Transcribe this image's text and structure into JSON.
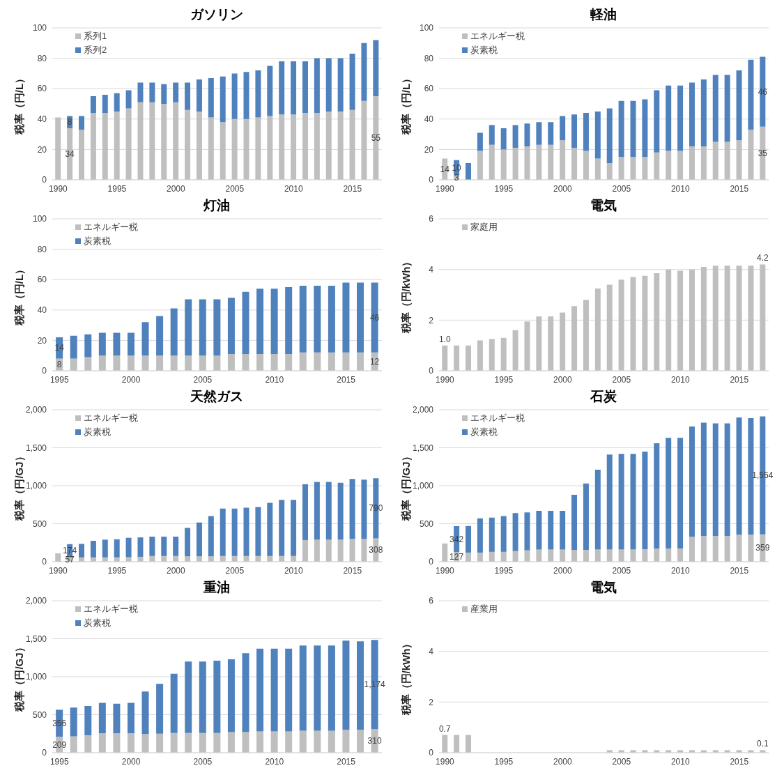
{
  "chart_data": [
    {
      "type": "bar",
      "title": "ガソリン",
      "ylabel": "税率（円/L）",
      "stacked": true,
      "legend": "top left",
      "grid": "y",
      "ylim": [
        0,
        100
      ],
      "yticks": [
        0,
        20,
        40,
        60,
        80,
        100
      ],
      "categories": [
        "1990",
        null,
        null,
        null,
        null,
        "1995",
        null,
        null,
        null,
        null,
        "2000",
        null,
        null,
        null,
        null,
        "2005",
        null,
        null,
        null,
        null,
        "2010",
        null,
        null,
        null,
        null,
        "2015",
        null,
        null
      ],
      "series": [
        {
          "name": "系列1",
          "color": "#bfbfbf",
          "values": [
            41,
            34,
            33,
            44,
            44,
            45,
            47,
            51,
            51,
            50,
            51,
            46,
            45,
            41,
            38,
            40,
            40,
            41,
            42,
            43,
            43,
            44,
            44,
            45,
            45,
            46,
            52,
            55
          ],
          "value_labels": [
            null,
            "34",
            null,
            null,
            null,
            null,
            null,
            null,
            null,
            null,
            null,
            null,
            null,
            null,
            null,
            null,
            null,
            null,
            null,
            null,
            null,
            null,
            null,
            null,
            null,
            null,
            null,
            "55"
          ]
        },
        {
          "name": "系列2",
          "color": "#4f81bd",
          "values": [
            null,
            8,
            9,
            11,
            12,
            12,
            12,
            13,
            13,
            13,
            13,
            18,
            21,
            26,
            30,
            30,
            31,
            31,
            33,
            35,
            35,
            34,
            36,
            35,
            35,
            37,
            38,
            37
          ],
          "value_labels": [
            null,
            "8",
            null,
            null,
            null,
            null,
            null,
            null,
            null,
            null,
            null,
            null,
            null,
            null,
            null,
            null,
            null,
            null,
            null,
            null,
            null,
            null,
            null,
            null,
            null,
            null,
            null,
            null
          ]
        }
      ]
    },
    {
      "type": "bar",
      "title": "軽油",
      "ylabel": "税率（円/L）",
      "stacked": true,
      "legend": "top left",
      "grid": "y",
      "ylim": [
        0,
        100
      ],
      "yticks": [
        0,
        20,
        40,
        60,
        80,
        100
      ],
      "categories": [
        "1990",
        null,
        null,
        null,
        null,
        "1995",
        null,
        null,
        null,
        null,
        "2000",
        null,
        null,
        null,
        null,
        "2005",
        null,
        null,
        null,
        null,
        "2010",
        null,
        null,
        null,
        null,
        "2015",
        null,
        null
      ],
      "series": [
        {
          "name": "エネルギー税",
          "color": "#bfbfbf",
          "values": [
            14,
            3,
            null,
            19,
            23,
            20,
            21,
            22,
            23,
            23,
            26,
            21,
            19,
            14,
            11,
            15,
            15,
            15,
            18,
            19,
            19,
            22,
            22,
            25,
            25,
            26,
            33,
            35
          ],
          "value_labels": [
            "14",
            "3",
            null,
            null,
            null,
            null,
            null,
            null,
            null,
            null,
            null,
            null,
            null,
            null,
            null,
            null,
            null,
            null,
            null,
            null,
            null,
            null,
            null,
            null,
            null,
            null,
            null,
            "35"
          ]
        },
        {
          "name": "炭素税",
          "color": "#4f81bd",
          "values": [
            null,
            10,
            11,
            12,
            13,
            14,
            15,
            15,
            15,
            15,
            16,
            22,
            25,
            31,
            36,
            37,
            37,
            38,
            41,
            43,
            43,
            42,
            44,
            44,
            44,
            46,
            46,
            46
          ],
          "value_labels": [
            null,
            "10",
            null,
            null,
            null,
            null,
            null,
            null,
            null,
            null,
            null,
            null,
            null,
            null,
            null,
            null,
            null,
            null,
            null,
            null,
            null,
            null,
            null,
            null,
            null,
            null,
            null,
            "46"
          ]
        }
      ]
    },
    {
      "type": "bar",
      "title": "灯油",
      "ylabel": "税率（円/L）",
      "stacked": true,
      "legend": "top left",
      "grid": "y",
      "ylim": [
        0,
        100
      ],
      "yticks": [
        0,
        20,
        40,
        60,
        80,
        100
      ],
      "categories": [
        "1995",
        null,
        null,
        null,
        null,
        "2000",
        null,
        null,
        null,
        null,
        "2005",
        null,
        null,
        null,
        null,
        "2010",
        null,
        null,
        null,
        null,
        "2015",
        null,
        null
      ],
      "series": [
        {
          "name": "エネルギー税",
          "color": "#bfbfbf",
          "values": [
            8,
            8,
            9,
            10,
            10,
            10,
            10,
            10,
            10,
            10,
            10,
            10,
            11,
            11,
            11,
            11,
            11,
            12,
            12,
            12,
            12,
            12,
            12
          ],
          "value_labels": [
            "8",
            null,
            null,
            null,
            null,
            null,
            null,
            null,
            null,
            null,
            null,
            null,
            null,
            null,
            null,
            null,
            null,
            null,
            null,
            null,
            null,
            null,
            "12"
          ]
        },
        {
          "name": "炭素税",
          "color": "#4f81bd",
          "values": [
            14,
            15,
            15,
            15,
            15,
            15,
            22,
            26,
            31,
            37,
            37,
            37,
            37,
            41,
            43,
            43,
            44,
            44,
            44,
            44,
            46,
            46,
            46
          ],
          "value_labels": [
            "14",
            null,
            null,
            null,
            null,
            null,
            null,
            null,
            null,
            null,
            null,
            null,
            null,
            null,
            null,
            null,
            null,
            null,
            null,
            null,
            null,
            null,
            "46"
          ]
        }
      ]
    },
    {
      "type": "bar",
      "title": "電気",
      "ylabel": "税率（円/kWh）",
      "legend": "top left",
      "grid": "y",
      "ylim": [
        0,
        6
      ],
      "yticks": [
        0,
        2,
        4,
        6
      ],
      "categories": [
        "1990",
        null,
        null,
        null,
        null,
        "1995",
        null,
        null,
        null,
        null,
        "2000",
        null,
        null,
        null,
        null,
        "2005",
        null,
        null,
        null,
        null,
        "2010",
        null,
        null,
        null,
        null,
        "2015",
        null,
        null
      ],
      "series": [
        {
          "name": "家庭用",
          "color": "#bfbfbf",
          "values": [
            1.0,
            1.0,
            1.0,
            1.2,
            1.25,
            1.3,
            1.6,
            1.95,
            2.15,
            2.15,
            2.3,
            2.55,
            2.8,
            3.25,
            3.4,
            3.6,
            3.7,
            3.75,
            3.85,
            4.0,
            3.95,
            4.0,
            4.1,
            4.15,
            4.15,
            4.15,
            4.15,
            4.2
          ],
          "value_labels": [
            "1.0",
            null,
            null,
            null,
            null,
            null,
            null,
            null,
            null,
            null,
            null,
            null,
            null,
            null,
            null,
            null,
            null,
            null,
            null,
            null,
            null,
            null,
            null,
            null,
            null,
            null,
            null,
            "4.2"
          ]
        }
      ]
    },
    {
      "type": "bar",
      "title": "天然ガス",
      "ylabel": "税率（円/GJ）",
      "stacked": true,
      "legend": "top left",
      "grid": "y",
      "ylim": [
        0,
        2000
      ],
      "yticks": [
        0,
        500,
        {
          "value": 1000,
          "label": "1,000"
        },
        {
          "value": 1500,
          "label": "1,500"
        },
        {
          "value": 2000,
          "label": "2,000"
        }
      ],
      "categories": [
        "1990",
        null,
        null,
        null,
        null,
        "1995",
        null,
        null,
        null,
        null,
        "2000",
        null,
        null,
        null,
        null,
        "2005",
        null,
        null,
        null,
        null,
        "2010",
        null,
        null,
        null,
        null,
        "2015",
        null,
        null
      ],
      "series": [
        {
          "name": "エネルギー税",
          "color": "#bfbfbf",
          "values": [
            110,
            57,
            57,
            57,
            57,
            57,
            60,
            65,
            75,
            75,
            75,
            70,
            70,
            70,
            75,
            75,
            75,
            75,
            75,
            75,
            75,
            285,
            290,
            290,
            290,
            300,
            300,
            308
          ],
          "value_labels": [
            null,
            "57",
            null,
            null,
            null,
            null,
            null,
            null,
            null,
            null,
            null,
            null,
            null,
            null,
            null,
            null,
            null,
            null,
            null,
            null,
            null,
            null,
            null,
            null,
            null,
            null,
            null,
            "308"
          ]
        },
        {
          "name": "炭素税",
          "color": "#4f81bd",
          "values": [
            null,
            174,
            178,
            218,
            233,
            238,
            255,
            255,
            255,
            255,
            255,
            375,
            445,
            530,
            625,
            625,
            635,
            645,
            700,
            740,
            740,
            735,
            760,
            760,
            750,
            790,
            780,
            790
          ],
          "value_labels": [
            null,
            "174",
            null,
            null,
            null,
            null,
            null,
            null,
            null,
            null,
            null,
            null,
            null,
            null,
            null,
            null,
            null,
            null,
            null,
            null,
            null,
            null,
            null,
            null,
            null,
            null,
            null,
            "790"
          ]
        }
      ]
    },
    {
      "type": "bar",
      "title": "石炭",
      "ylabel": "税率（円/GJ）",
      "stacked": true,
      "legend": "top left",
      "grid": "y",
      "ylim": [
        0,
        2000
      ],
      "yticks": [
        0,
        500,
        {
          "value": 1000,
          "label": "1,000"
        },
        {
          "value": 1500,
          "label": "1,500"
        },
        {
          "value": 2000,
          "label": "2,000"
        }
      ],
      "categories": [
        "1990",
        null,
        null,
        null,
        null,
        "1995",
        null,
        null,
        null,
        null,
        "2000",
        null,
        null,
        null,
        null,
        "2005",
        null,
        null,
        null,
        null,
        "2010",
        null,
        null,
        null,
        null,
        "2015",
        null,
        null
      ],
      "series": [
        {
          "name": "エネルギー税",
          "color": "#bfbfbf",
          "values": [
            240,
            127,
            120,
            120,
            130,
            130,
            140,
            150,
            160,
            160,
            160,
            155,
            155,
            160,
            160,
            160,
            160,
            165,
            175,
            175,
            175,
            330,
            340,
            340,
            340,
            355,
            355,
            359
          ],
          "value_labels": [
            null,
            "127",
            null,
            null,
            null,
            null,
            null,
            null,
            null,
            null,
            null,
            null,
            null,
            null,
            null,
            null,
            null,
            null,
            null,
            null,
            null,
            null,
            null,
            null,
            null,
            null,
            null,
            "359"
          ]
        },
        {
          "name": "炭素税",
          "color": "#4f81bd",
          "values": [
            null,
            342,
            350,
            450,
            450,
            470,
            500,
            500,
            510,
            510,
            510,
            725,
            875,
            1050,
            1250,
            1260,
            1260,
            1285,
            1385,
            1455,
            1455,
            1450,
            1490,
            1480,
            1480,
            1545,
            1535,
            1554
          ],
          "value_labels": [
            null,
            "342",
            null,
            null,
            null,
            null,
            null,
            null,
            null,
            null,
            null,
            null,
            null,
            null,
            null,
            null,
            null,
            null,
            null,
            null,
            null,
            null,
            null,
            null,
            null,
            null,
            null,
            "1,554"
          ]
        }
      ]
    },
    {
      "type": "bar",
      "title": "重油",
      "ylabel": "税率（円/GJ）",
      "stacked": true,
      "legend": "top left",
      "grid": "y",
      "ylim": [
        0,
        2000
      ],
      "yticks": [
        0,
        500,
        {
          "value": 1000,
          "label": "1,000"
        },
        {
          "value": 1500,
          "label": "1,500"
        },
        {
          "value": 2000,
          "label": "2,000"
        }
      ],
      "categories": [
        "1995",
        null,
        null,
        null,
        null,
        "2000",
        null,
        null,
        null,
        null,
        "2005",
        null,
        null,
        null,
        null,
        "2010",
        null,
        null,
        null,
        null,
        "2015",
        null,
        null
      ],
      "series": [
        {
          "name": "エネルギー税",
          "color": "#bfbfbf",
          "values": [
            209,
            215,
            230,
            255,
            255,
            255,
            245,
            250,
            260,
            260,
            260,
            260,
            270,
            270,
            280,
            280,
            280,
            290,
            290,
            290,
            300,
            300,
            310
          ],
          "value_labels": [
            "209",
            null,
            null,
            null,
            null,
            null,
            null,
            null,
            null,
            null,
            null,
            null,
            null,
            null,
            null,
            null,
            null,
            null,
            null,
            null,
            null,
            null,
            "310"
          ]
        },
        {
          "name": "炭素税",
          "color": "#4f81bd",
          "values": [
            356,
            380,
            385,
            400,
            390,
            400,
            560,
            655,
            780,
            940,
            940,
            950,
            960,
            1040,
            1090,
            1090,
            1090,
            1120,
            1120,
            1120,
            1175,
            1165,
            1174
          ],
          "value_labels": [
            "356",
            null,
            null,
            null,
            null,
            null,
            null,
            null,
            null,
            null,
            null,
            null,
            null,
            null,
            null,
            null,
            null,
            null,
            null,
            null,
            null,
            null,
            "1,174"
          ]
        }
      ]
    },
    {
      "type": "bar",
      "title": "電気",
      "ylabel": "税率（円/kWh）",
      "legend": "top left",
      "grid": "y",
      "ylim": [
        0,
        6
      ],
      "yticks": [
        0,
        2,
        4,
        6
      ],
      "categories": [
        "1990",
        null,
        null,
        null,
        null,
        "1995",
        null,
        null,
        null,
        null,
        "2000",
        null,
        null,
        null,
        null,
        "2005",
        null,
        null,
        null,
        null,
        "2010",
        null,
        null,
        null,
        null,
        "2015",
        null,
        null
      ],
      "series": [
        {
          "name": "産業用",
          "color": "#bfbfbf",
          "values": [
            0.7,
            0.7,
            0.7,
            0,
            0,
            0,
            0,
            0,
            0,
            0,
            0,
            0,
            0,
            0,
            0.1,
            0.1,
            0.1,
            0.1,
            0.1,
            0.1,
            0.1,
            0.1,
            0.1,
            0.1,
            0.1,
            0.1,
            0.1,
            0.1
          ],
          "value_labels": [
            "0.7",
            null,
            null,
            null,
            null,
            null,
            null,
            null,
            null,
            null,
            null,
            null,
            null,
            null,
            null,
            null,
            null,
            null,
            null,
            null,
            null,
            null,
            null,
            null,
            null,
            null,
            null,
            "0.1"
          ]
        }
      ]
    }
  ]
}
